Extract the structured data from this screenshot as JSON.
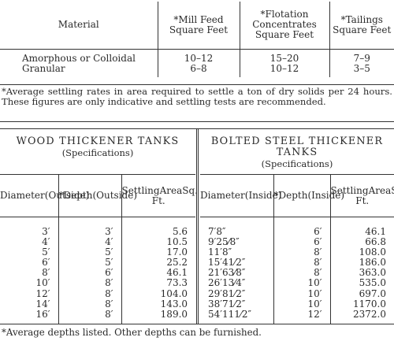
{
  "settling": {
    "headers": {
      "material": "Material",
      "mill_feed": [
        "*Mill Feed",
        "Square Feet"
      ],
      "flotation": [
        "*Flotation",
        "Concentrates",
        "Square Feet"
      ],
      "tailings": [
        "*Tailings",
        "Square Feet"
      ]
    },
    "rows": [
      {
        "material": "Amorphous or Colloidal",
        "mill_feed": "10–12",
        "flotation": "15–20",
        "tailings": "7–9"
      },
      {
        "material": "Granular",
        "mill_feed": "6–8",
        "flotation": "10–12",
        "tailings": "3–5"
      }
    ],
    "note": "*Average settling rates in area required to settle a ton of dry solids per 24 hours. These figures are only indicative and settling tests are recommended."
  },
  "wood": {
    "title": "WOOD THICKENER TANKS",
    "subtitle": "(Specifications)",
    "headers": {
      "diameter": [
        "Diameter",
        "(Outside)"
      ],
      "depth": [
        "*Depth",
        "(Outside)"
      ],
      "area": [
        "Settling",
        "Area",
        "Sq. Ft."
      ]
    },
    "rows": [
      [
        "3′",
        "3′",
        "5.6"
      ],
      [
        "4′",
        "4′",
        "10.5"
      ],
      [
        "5′",
        "5′",
        "17.0"
      ],
      [
        "6′",
        "5′",
        "25.2"
      ],
      [
        "8′",
        "6′",
        "46.1"
      ],
      [
        "10′",
        "8′",
        "73.3"
      ],
      [
        "12′",
        "8′",
        "104.0"
      ],
      [
        "14′",
        "8′",
        "143.0"
      ],
      [
        "16′",
        "8′",
        "189.0"
      ]
    ]
  },
  "steel": {
    "title": "BOLTED STEEL THICKENER TANKS",
    "subtitle": "(Specifications)",
    "headers": {
      "diameter": [
        "Diameter",
        "(Inside)"
      ],
      "depth": [
        "*Depth",
        "(Inside)"
      ],
      "area": [
        "Settling",
        "Area",
        "Sq. Ft."
      ]
    },
    "rows": [
      [
        "7′8″",
        "6′",
        "46.1"
      ],
      [
        "9′25⁄8″",
        "6′",
        "66.8"
      ],
      [
        "11′8″",
        "8′",
        "108.0"
      ],
      [
        "15′41⁄2″",
        "8′",
        "186.0"
      ],
      [
        "21′63⁄8″",
        "8′",
        "363.0"
      ],
      [
        "26′13⁄4″",
        "10′",
        "535.0"
      ],
      [
        "29′81⁄2″",
        "10′",
        "697.0"
      ],
      [
        "38′71⁄2″",
        "10′",
        "1170.0"
      ],
      [
        "54′111⁄2″",
        "12′",
        "2372.0"
      ]
    ]
  },
  "spec_note": "*Average depths listed. Other depths can be furnished."
}
